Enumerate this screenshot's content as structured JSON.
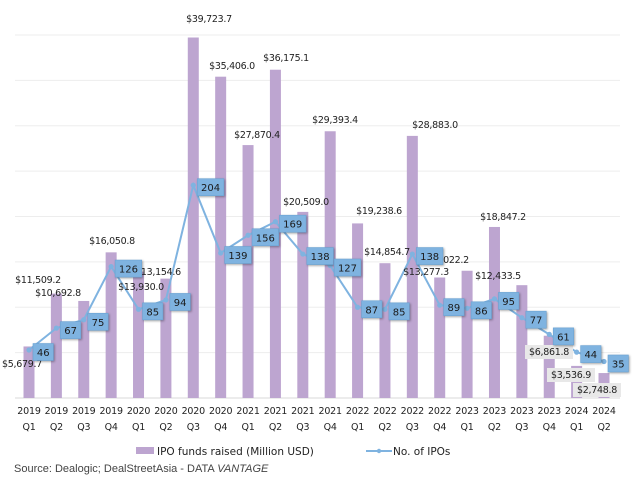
{
  "chart_data": {
    "type": "bar",
    "title": "",
    "xlabel": "",
    "ylabel": "",
    "grid": true,
    "legend_position": "bottom",
    "categories": [
      [
        "2019",
        "Q1"
      ],
      [
        "2019",
        "Q2"
      ],
      [
        "2019",
        "Q3"
      ],
      [
        "2019",
        "Q4"
      ],
      [
        "2020",
        "Q1"
      ],
      [
        "2020",
        "Q2"
      ],
      [
        "2020",
        "Q3"
      ],
      [
        "2020",
        "Q4"
      ],
      [
        "2021",
        "Q1"
      ],
      [
        "2021",
        "Q2"
      ],
      [
        "2021",
        "Q3"
      ],
      [
        "2021",
        "Q4"
      ],
      [
        "2022",
        "Q1"
      ],
      [
        "2022",
        "Q2"
      ],
      [
        "2022",
        "Q3"
      ],
      [
        "2022",
        "Q4"
      ],
      [
        "2023",
        "Q1"
      ],
      [
        "2023",
        "Q2"
      ],
      [
        "2023",
        "Q3"
      ],
      [
        "2023",
        "Q4"
      ],
      [
        "2024",
        "Q1"
      ],
      [
        "2024",
        "Q2"
      ]
    ],
    "ylim": [
      0,
      40000
    ],
    "y2lim": [
      0,
      348
    ],
    "gridlines": 8,
    "series": [
      {
        "name": "IPO funds raised (Million USD)",
        "type": "bar",
        "color": "#bda5d0",
        "values": [
          5679.7,
          11509.2,
          10692.8,
          16050.8,
          13930.0,
          13154.6,
          39723.7,
          35406.0,
          27870.4,
          36175.1,
          20509.0,
          29393.4,
          19238.6,
          14854.7,
          28883.0,
          13277.3,
          14022.2,
          18847.2,
          12433.5,
          6861.8,
          3536.9,
          2748.8
        ],
        "labels": [
          "$5,679.7",
          "$11,509.2",
          "$10,692.8",
          "$16,050.8",
          "$13,930.0",
          "$13,154.6",
          "$39,723.7",
          "$35,406.0",
          "$27,870.4",
          "$36,175.1",
          "$20,509.0",
          "$29,393.4",
          "$19,238.6",
          "$14,854.7",
          "$28,883.0",
          "$13,277.3",
          "$14,022.2",
          "$18,847.2",
          "$12,433.5",
          "$6,861.8",
          "$3,536.9",
          "$2,748.8"
        ]
      },
      {
        "name": "No. of IPOs",
        "type": "line",
        "color": "#7fb3e0",
        "axis": "secondary",
        "values": [
          46,
          67,
          75,
          126,
          85,
          94,
          204,
          139,
          156,
          169,
          138,
          127,
          87,
          85,
          138,
          89,
          86,
          95,
          77,
          61,
          44,
          35
        ]
      }
    ]
  },
  "legend": {
    "bar_label": "IPO funds raised (Million USD)",
    "line_label": "No. of IPOs"
  },
  "source": {
    "prefix": "Source: Dealogic; DealStreetAsia -  DATA ",
    "brand": "VANTAGE"
  }
}
